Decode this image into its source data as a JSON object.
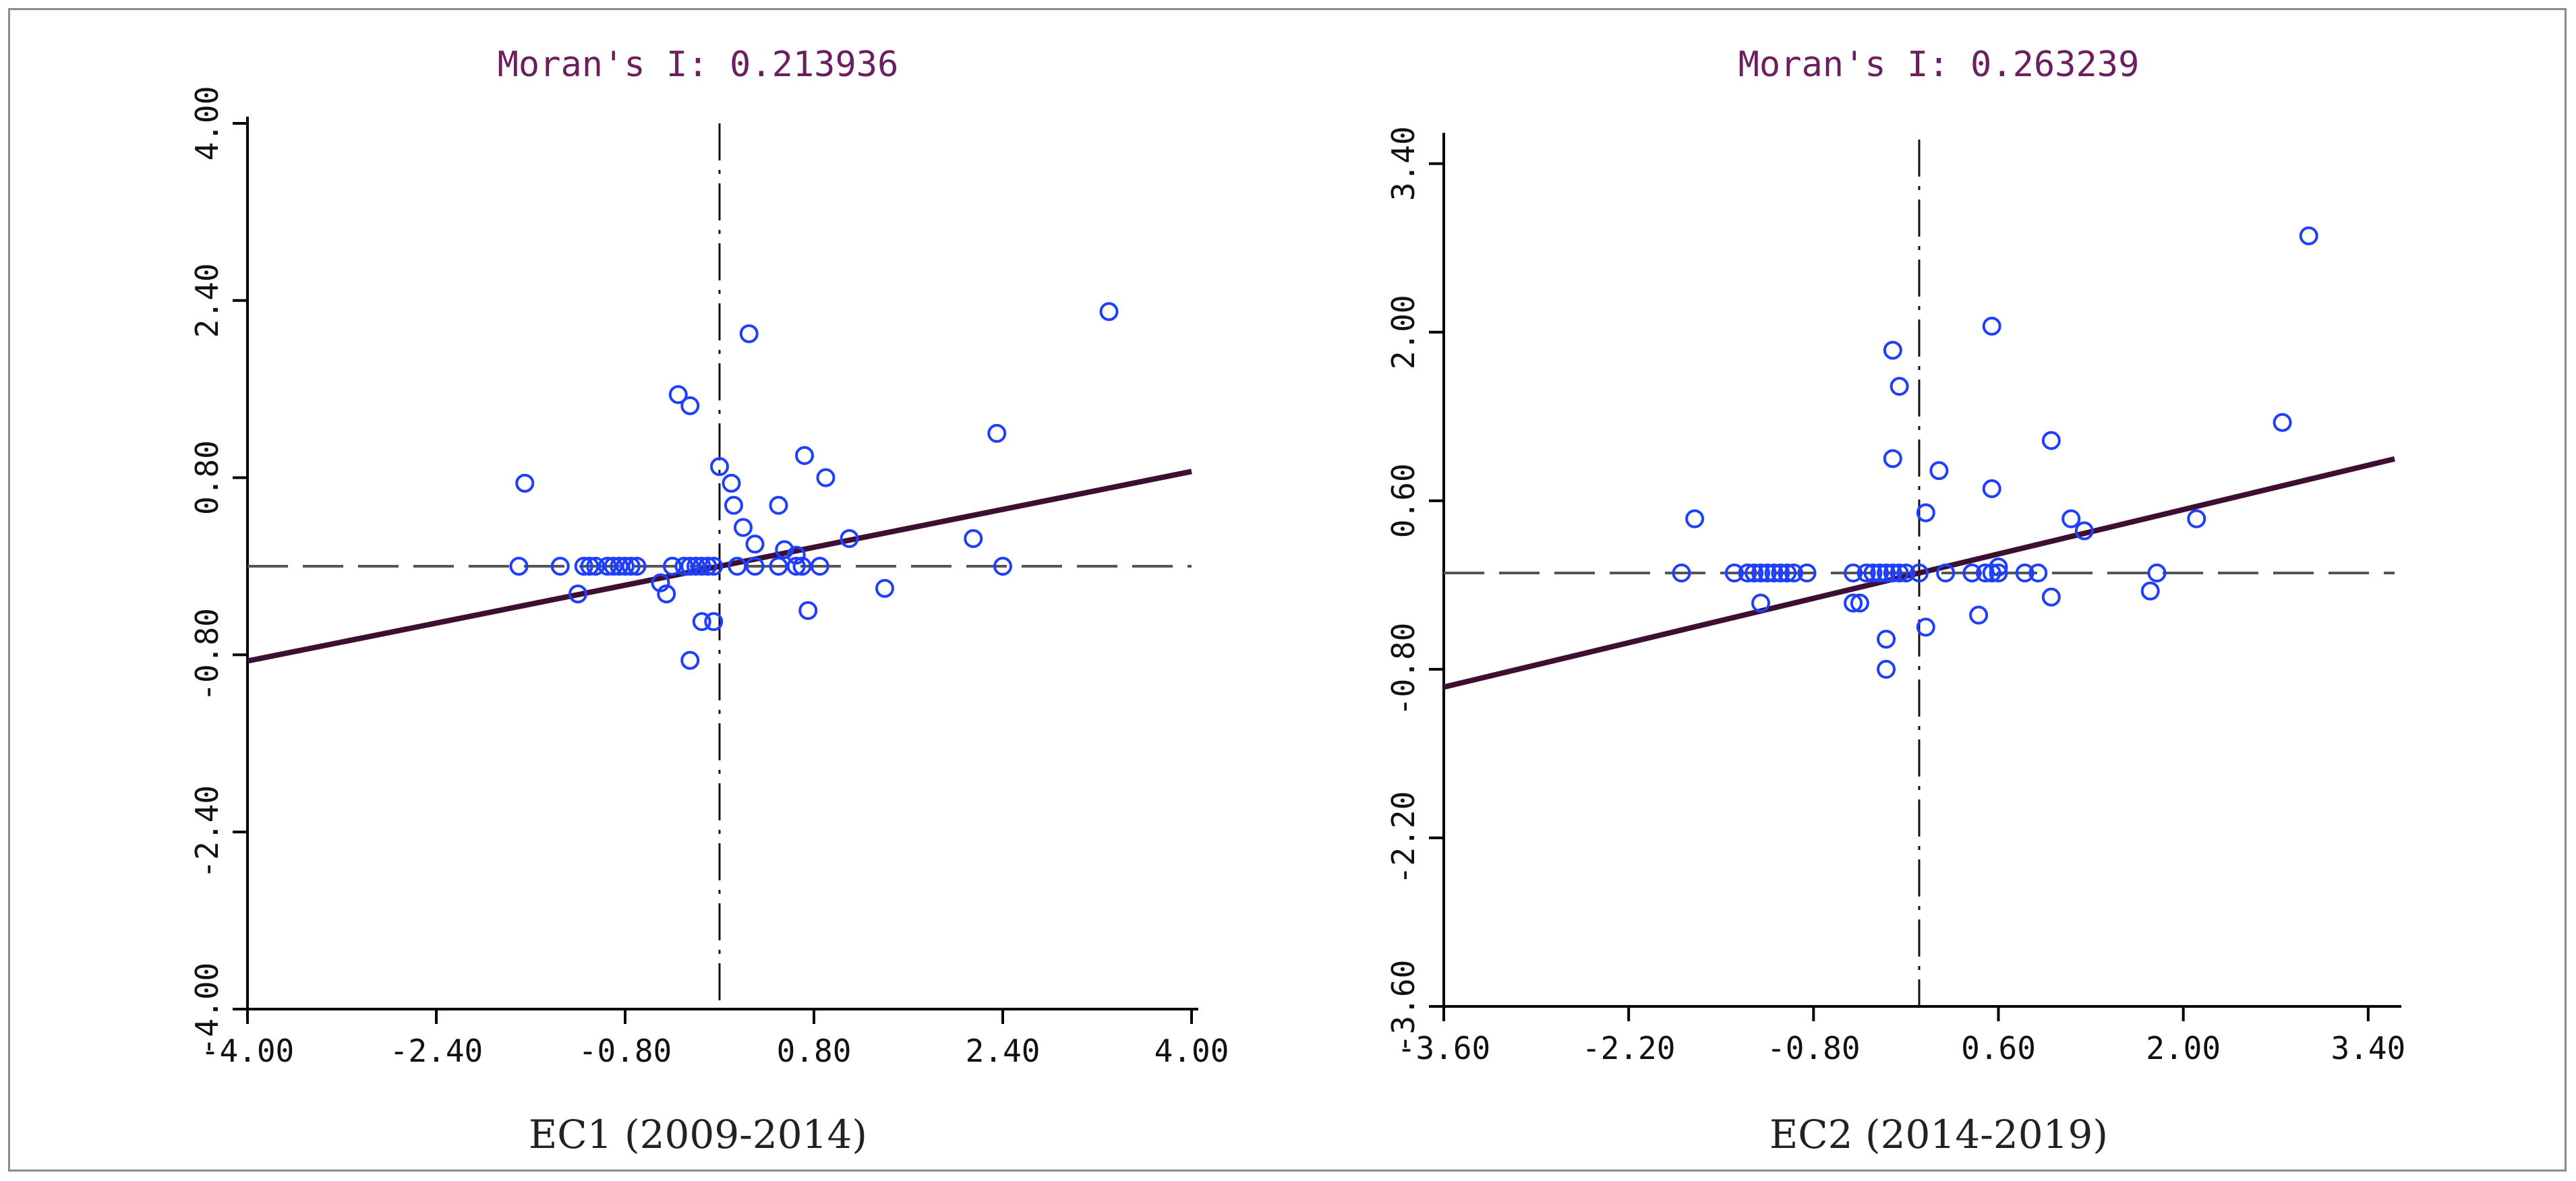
{
  "chart_data": [
    {
      "type": "scatter",
      "title": "Moran's I: 0.213936",
      "xlabel": "EC1 (2009-2014)",
      "ylabel": "",
      "xlim": [
        -4.0,
        4.0
      ],
      "ylim": [
        -4.0,
        4.0
      ],
      "xticks": [
        "-4.00",
        "-2.40",
        "-0.80",
        "0.80",
        "2.40",
        "4.00"
      ],
      "yticks": [
        "4.00",
        "2.40",
        "0.80",
        "-0.80",
        "-2.40",
        "-4.00"
      ],
      "xtick_values": [
        -4.0,
        -2.4,
        -0.8,
        0.8,
        2.4,
        4.0
      ],
      "ytick_values": [
        4.0,
        2.4,
        0.8,
        -0.8,
        -2.4,
        -4.0
      ],
      "regression": {
        "slope": 0.213936,
        "intercept": 0.0
      },
      "marker_color": "#1f3fff",
      "line_color": "#3d0f33",
      "points": [
        [
          -1.7,
          0.0
        ],
        [
          -1.35,
          0.0
        ],
        [
          -1.2,
          -0.25
        ],
        [
          -1.15,
          0.0
        ],
        [
          -1.1,
          0.0
        ],
        [
          -1.05,
          0.0
        ],
        [
          -0.95,
          0.0
        ],
        [
          -0.9,
          0.0
        ],
        [
          -0.85,
          0.0
        ],
        [
          -0.8,
          0.0
        ],
        [
          -0.75,
          0.0
        ],
        [
          -0.7,
          0.0
        ],
        [
          -0.5,
          -0.15
        ],
        [
          -0.45,
          -0.25
        ],
        [
          -0.4,
          0.0
        ],
        [
          -0.3,
          0.0
        ],
        [
          -0.25,
          0.0
        ],
        [
          -0.2,
          0.0
        ],
        [
          -0.15,
          0.0
        ],
        [
          -0.1,
          0.0
        ],
        [
          -0.05,
          0.0
        ],
        [
          0.15,
          0.0
        ],
        [
          0.3,
          0.0
        ],
        [
          0.5,
          0.0
        ],
        [
          0.65,
          0.0
        ],
        [
          0.7,
          0.0
        ],
        [
          0.85,
          0.0
        ],
        [
          -1.65,
          0.75
        ],
        [
          -0.35,
          1.55
        ],
        [
          -0.25,
          1.45
        ],
        [
          0.25,
          2.1
        ],
        [
          0.0,
          0.9
        ],
        [
          0.1,
          0.75
        ],
        [
          0.12,
          0.55
        ],
        [
          0.2,
          0.35
        ],
        [
          0.3,
          0.2
        ],
        [
          0.5,
          0.55
        ],
        [
          0.55,
          0.15
        ],
        [
          0.65,
          0.1
        ],
        [
          0.72,
          1.0
        ],
        [
          0.9,
          0.8
        ],
        [
          1.1,
          0.25
        ],
        [
          1.4,
          -0.2
        ],
        [
          0.75,
          -0.4
        ],
        [
          -0.15,
          -0.5
        ],
        [
          -0.05,
          -0.5
        ],
        [
          -0.25,
          -0.85
        ],
        [
          2.15,
          0.25
        ],
        [
          2.35,
          1.2
        ],
        [
          2.4,
          0.0
        ],
        [
          3.3,
          2.3
        ]
      ]
    },
    {
      "type": "scatter",
      "title": "Moran's I: 0.263239",
      "xlabel": "EC2 (2014-2019)",
      "ylabel": "",
      "xlim": [
        -3.6,
        3.6
      ],
      "ylim": [
        -3.6,
        3.6
      ],
      "xticks": [
        "-3.60",
        "-2.20",
        "-0.80",
        "0.60",
        "2.00",
        "3.40"
      ],
      "yticks": [
        "3.40",
        "2.00",
        "0.60",
        "-0.80",
        "-2.20",
        "-3.60"
      ],
      "xtick_values": [
        -3.6,
        -2.2,
        -0.8,
        0.6,
        2.0,
        3.4
      ],
      "ytick_values": [
        3.4,
        2.0,
        0.6,
        -0.8,
        -2.2,
        -3.6
      ],
      "regression": {
        "slope": 0.263239,
        "intercept": 0.0
      },
      "marker_color": "#1f3fff",
      "line_color": "#3d0f33",
      "points": [
        [
          -1.8,
          0.0
        ],
        [
          -1.4,
          0.0
        ],
        [
          -1.3,
          0.0
        ],
        [
          -1.25,
          0.0
        ],
        [
          -1.2,
          0.0
        ],
        [
          -1.15,
          0.0
        ],
        [
          -1.1,
          0.0
        ],
        [
          -1.05,
          0.0
        ],
        [
          -1.0,
          0.0
        ],
        [
          -0.95,
          0.0
        ],
        [
          -0.85,
          0.0
        ],
        [
          -0.5,
          0.0
        ],
        [
          -0.4,
          0.0
        ],
        [
          -0.35,
          0.0
        ],
        [
          -0.3,
          0.0
        ],
        [
          -0.25,
          0.0
        ],
        [
          -0.2,
          0.0
        ],
        [
          -0.15,
          0.0
        ],
        [
          -0.1,
          0.0
        ],
        [
          0.0,
          0.0
        ],
        [
          0.2,
          0.0
        ],
        [
          0.4,
          0.0
        ],
        [
          0.5,
          0.0
        ],
        [
          0.55,
          0.0
        ],
        [
          0.6,
          0.0
        ],
        [
          0.8,
          0.0
        ],
        [
          0.9,
          0.0
        ],
        [
          1.8,
          0.0
        ],
        [
          -1.7,
          0.45
        ],
        [
          -1.2,
          -0.25
        ],
        [
          -0.5,
          -0.25
        ],
        [
          -0.45,
          -0.25
        ],
        [
          -0.25,
          -0.55
        ],
        [
          -0.25,
          -0.8
        ],
        [
          0.05,
          -0.45
        ],
        [
          0.45,
          -0.35
        ],
        [
          -0.2,
          1.85
        ],
        [
          -0.15,
          1.55
        ],
        [
          -0.2,
          0.95
        ],
        [
          0.05,
          0.5
        ],
        [
          0.15,
          0.85
        ],
        [
          0.55,
          2.05
        ],
        [
          0.55,
          0.7
        ],
        [
          0.6,
          0.05
        ],
        [
          1.0,
          1.1
        ],
        [
          1.0,
          -0.2
        ],
        [
          1.15,
          0.45
        ],
        [
          1.25,
          0.35
        ],
        [
          1.75,
          -0.15
        ],
        [
          2.1,
          0.45
        ],
        [
          2.75,
          1.25
        ],
        [
          2.95,
          2.8
        ]
      ]
    }
  ]
}
